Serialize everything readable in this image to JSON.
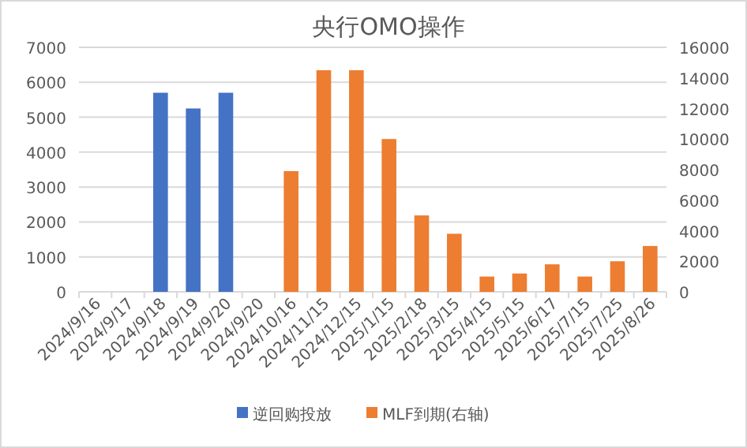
{
  "chart_data": {
    "type": "bar",
    "title": "央行OMO操作",
    "categories": [
      "2024/9/16",
      "2024/9/17",
      "2024/9/18",
      "2024/9/19",
      "2024/9/20",
      "2024/9/20",
      "2024/10/16",
      "2024/11/15",
      "2024/12/15",
      "2025/1/15",
      "2025/2/18",
      "2025/3/15",
      "2025/4/15",
      "2025/5/15",
      "2025/6/17",
      "2025/7/15",
      "2025/7/25",
      "2025/8/26"
    ],
    "series": [
      {
        "name": "逆回购投放",
        "color": "#4472c4",
        "values": [
          null,
          null,
          5700,
          5250,
          5700,
          null,
          null,
          null,
          null,
          null,
          null,
          null,
          null,
          null,
          null,
          null,
          null,
          null
        ]
      },
      {
        "name": "MLF到期(右轴)",
        "color": "#ed7d31",
        "axis": "y2",
        "values": [
          null,
          null,
          null,
          null,
          null,
          null,
          7900,
          14500,
          14500,
          10000,
          5000,
          3800,
          1000,
          1200,
          1800,
          1000,
          2000,
          3000
        ]
      }
    ],
    "ylim": [
      0,
      7000
    ],
    "yticks": [
      0,
      1000,
      2000,
      3000,
      4000,
      5000,
      6000,
      7000
    ],
    "y2lim": [
      0,
      16000
    ],
    "y2ticks": [
      0,
      2000,
      4000,
      6000,
      8000,
      10000,
      12000,
      14000,
      16000
    ],
    "grid": "y",
    "legend": "bottom"
  }
}
